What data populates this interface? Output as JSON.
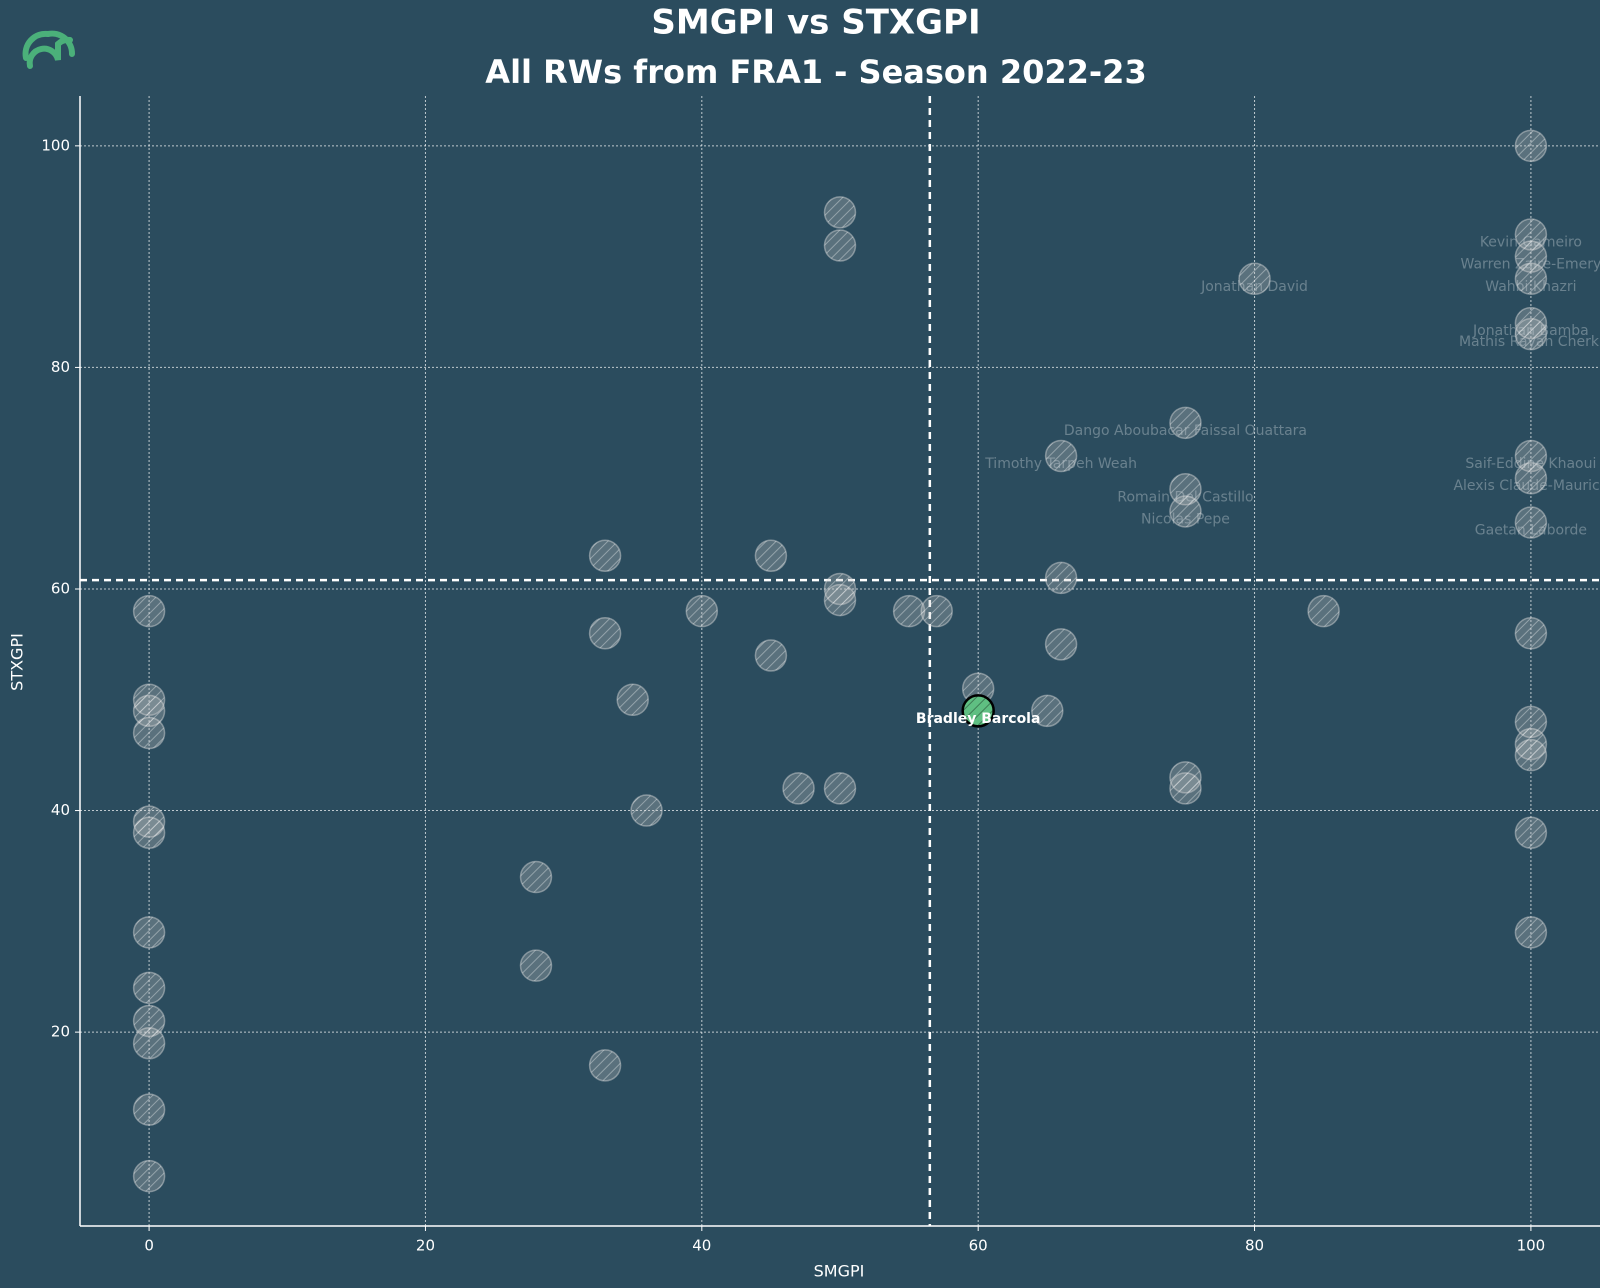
{
  "chart_data": {
    "type": "scatter",
    "title": "SMGPI vs STXGPI",
    "subtitle": "All RWs from FRA1 - Season 2022-23",
    "xlabel": "SMGPI",
    "ylabel": "STXGPI",
    "xlim": [
      -5,
      105
    ],
    "ylim": [
      2.5,
      104.5
    ],
    "xticks": [
      0,
      20,
      40,
      60,
      80,
      100
    ],
    "yticks": [
      20,
      40,
      60,
      80,
      100
    ],
    "grid": true,
    "vlines": [
      56.5
    ],
    "hlines": [
      60.8
    ],
    "series": [
      {
        "color": "#c8c8c8",
        "x": [
          0,
          0,
          0,
          0,
          0,
          0,
          0,
          0,
          0,
          0,
          0,
          0,
          28,
          28,
          33,
          33,
          33,
          35,
          36,
          40,
          45,
          45,
          47,
          50,
          50,
          50,
          50,
          50,
          55,
          57,
          60,
          65,
          66,
          66,
          66,
          75,
          75,
          75,
          75,
          75,
          80,
          85,
          100,
          100,
          100,
          100,
          100,
          100,
          100,
          100,
          100,
          100,
          100,
          100,
          100,
          100,
          100
        ],
        "values": [
          58,
          50,
          49,
          47,
          39,
          38,
          29,
          24,
          21,
          19,
          13,
          7,
          34,
          26,
          63,
          56,
          17,
          50,
          40,
          58,
          63,
          54,
          42,
          94,
          91,
          60,
          59,
          42,
          58,
          58,
          51,
          49,
          72,
          61,
          55,
          75,
          69,
          67,
          43,
          42,
          88,
          58,
          100,
          92,
          90,
          88,
          84,
          83,
          72,
          70,
          66,
          56,
          48,
          46,
          45,
          38,
          29
        ],
        "labels": [
          null,
          null,
          null,
          null,
          null,
          null,
          null,
          null,
          null,
          null,
          null,
          null,
          null,
          null,
          null,
          null,
          null,
          null,
          null,
          null,
          null,
          null,
          null,
          null,
          null,
          null,
          null,
          null,
          null,
          null,
          null,
          null,
          "Timothy Tarpeh Weah",
          null,
          null,
          "Dango Aboubacar Faissal Ouattara",
          "Romain Del Castillo",
          "Nicolas Pepe",
          null,
          null,
          "Jonathan David",
          null,
          null,
          "Kevin Gameiro",
          "Warren Zaire-Emery",
          "Wahbi Khazri",
          "Jonathan Bamba",
          "Mathis Rayan Cherki",
          "Saif-Eddine Khaoui",
          "Alexis Claude-Maurice",
          "Gaetan Laborde",
          null,
          null,
          null,
          null,
          null,
          null
        ]
      },
      {
        "color": "#5fbf82",
        "x": [
          60
        ],
        "values": [
          49
        ],
        "labels": [
          "Bradley Barcola"
        ]
      }
    ]
  }
}
